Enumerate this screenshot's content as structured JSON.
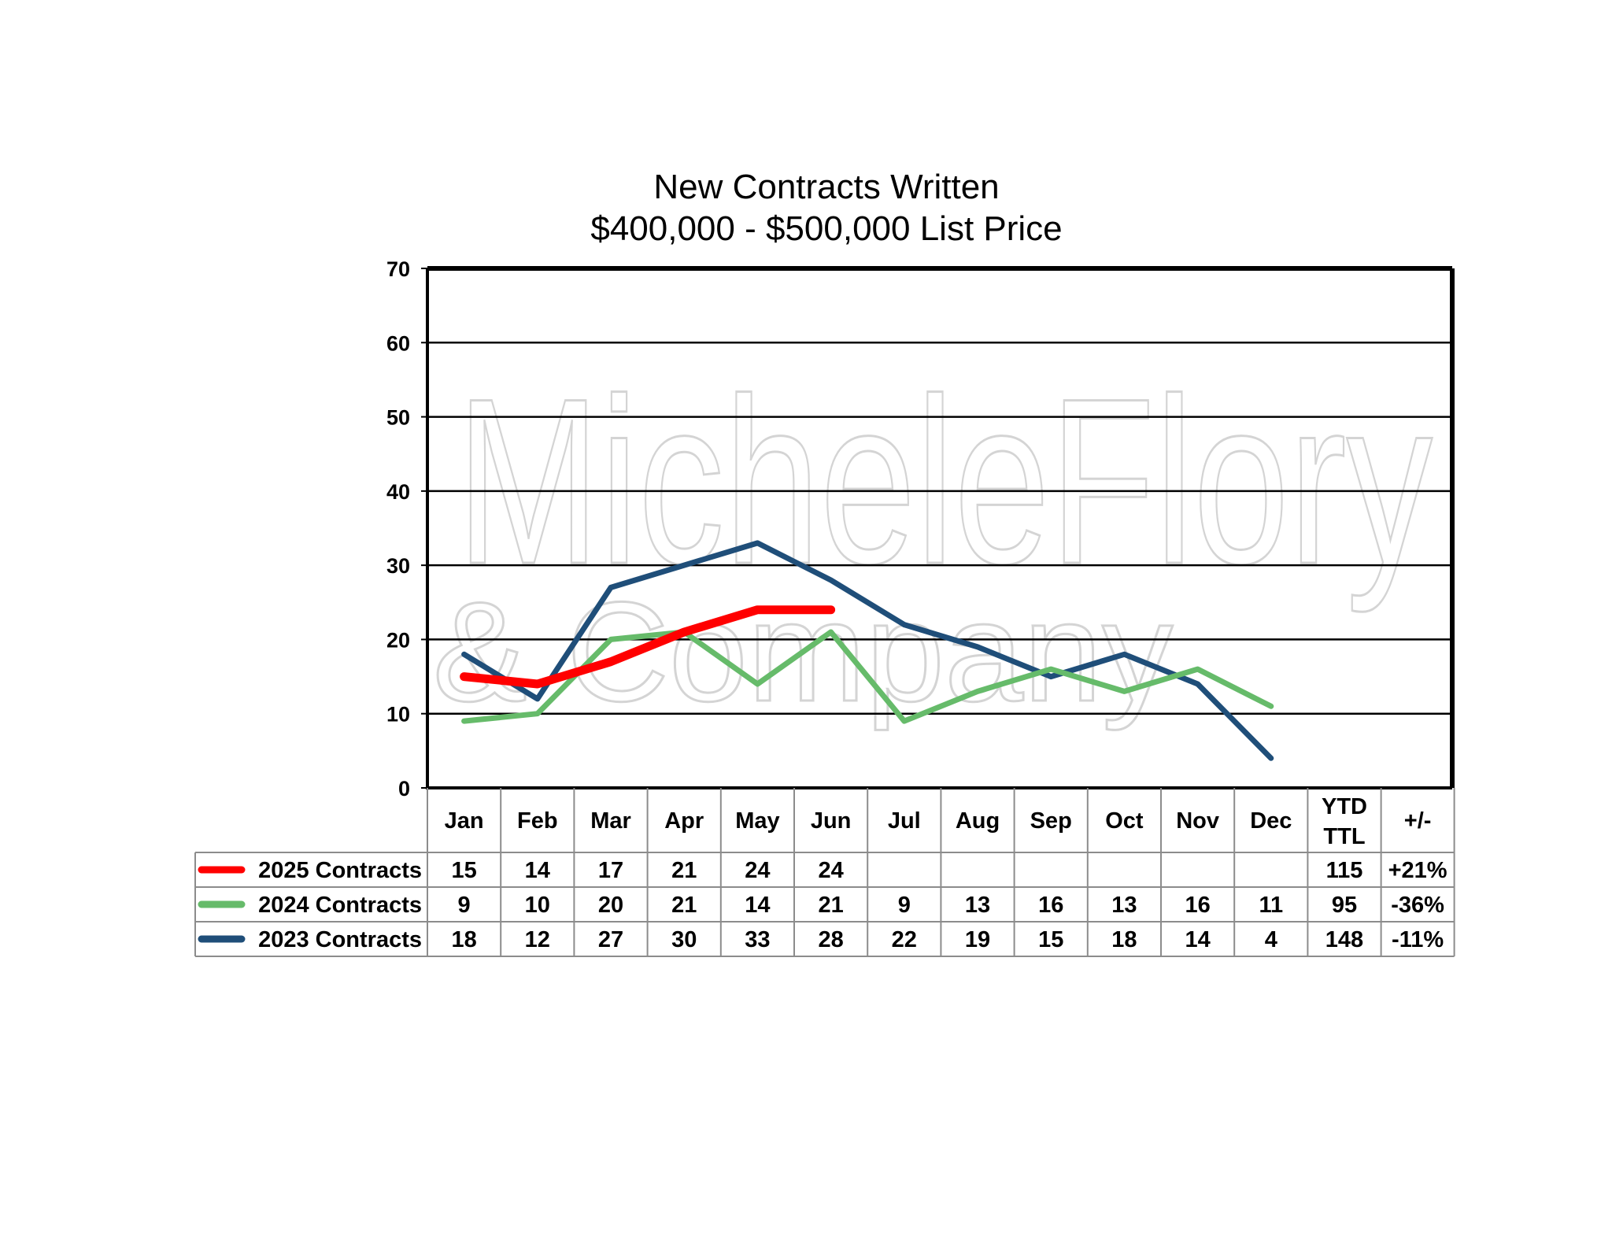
{
  "chart_data": {
    "type": "line",
    "title": "New Contracts Written",
    "subtitle": "$400,000 - $500,000 List Price",
    "categories": [
      "Jan",
      "Feb",
      "Mar",
      "Apr",
      "May",
      "Jun",
      "Jul",
      "Aug",
      "Sep",
      "Oct",
      "Nov",
      "Dec"
    ],
    "ylim": [
      0,
      70
    ],
    "yticks": [
      "0",
      "10",
      "20",
      "30",
      "40",
      "50",
      "60",
      "70"
    ],
    "grid": true,
    "legend": "data table below chart",
    "series": [
      {
        "name": "2025 Contracts",
        "color": "#ff0000",
        "values": [
          15,
          14,
          17,
          21,
          24,
          24,
          null,
          null,
          null,
          null,
          null,
          null
        ],
        "total": "115",
        "change": "+21%"
      },
      {
        "name": "2024 Contracts",
        "color": "#66bb6a",
        "values": [
          9,
          10,
          20,
          21,
          14,
          21,
          9,
          13,
          16,
          13,
          16,
          11
        ],
        "total": "95",
        "change": "-36%"
      },
      {
        "name": "2023 Contracts",
        "color": "#1f4e79",
        "values": [
          18,
          12,
          27,
          30,
          33,
          28,
          22,
          19,
          15,
          18,
          14,
          4
        ],
        "total": "148",
        "change": "-11%"
      }
    ],
    "table_headers": {
      "total": [
        "YTD",
        "TTL"
      ],
      "change": "+/-"
    }
  },
  "watermark": {
    "line1": "MicheleFlory",
    "line2": "& Company"
  }
}
